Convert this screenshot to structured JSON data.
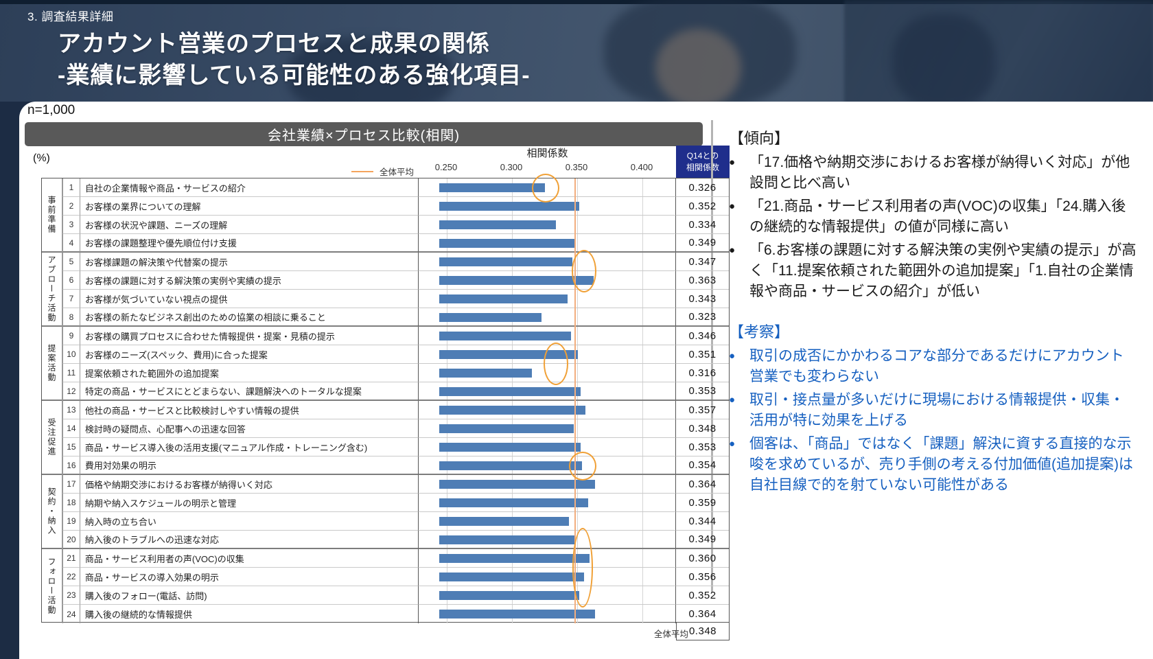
{
  "slide": {
    "eyebrow": "3. 調査結果詳細",
    "title_line1": "アカウント営業のプロセスと成果の関係",
    "title_line2": "-業績に影響している可能性のある強化項目-",
    "sample_size": "n=1,000",
    "percent_label": "(%)"
  },
  "chart_data": {
    "type": "bar",
    "title": "会社業績×プロセス比較(相関)",
    "axis_title": "相関係数",
    "x_ticks": [
      0.25,
      0.3,
      0.35,
      0.4
    ],
    "xlim": [
      0.245,
      0.4275
    ],
    "bar_color": "#4E7DB5",
    "legend": {
      "label": "全体平均",
      "color": "#F4A45C",
      "style": "vertical-line"
    },
    "value_column_header": {
      "line1": "Q14との",
      "line2": "相関係数"
    },
    "overall_average": {
      "label": "全体平均",
      "value": 0.348
    },
    "groups": [
      {
        "name": "事前準備",
        "rows": 4
      },
      {
        "name": "アプローチ活動",
        "rows": 4
      },
      {
        "name": "提案活動",
        "rows": 4
      },
      {
        "name": "受注促進",
        "rows": 4
      },
      {
        "name": "契約・納入",
        "rows": 4
      },
      {
        "name": "フォロー活動",
        "rows": 4
      }
    ],
    "rows": [
      {
        "no": 1,
        "group": "事前準備",
        "label": "自社の企業情報や商品・サービスの紹介",
        "value": 0.326
      },
      {
        "no": 2,
        "group": "事前準備",
        "label": "お客様の業界についての理解",
        "value": 0.352
      },
      {
        "no": 3,
        "group": "事前準備",
        "label": "お客様の状況や課題、ニーズの理解",
        "value": 0.334
      },
      {
        "no": 4,
        "group": "事前準備",
        "label": "お客様の課題整理や優先順位付け支援",
        "value": 0.349
      },
      {
        "no": 5,
        "group": "アプローチ活動",
        "label": "お客様課題の解決策や代替案の提示",
        "value": 0.347
      },
      {
        "no": 6,
        "group": "アプローチ活動",
        "label": "お客様の課題に対する解決策の実例や実績の提示",
        "value": 0.363
      },
      {
        "no": 7,
        "group": "アプローチ活動",
        "label": "お客様が気づいていない視点の提供",
        "value": 0.343
      },
      {
        "no": 8,
        "group": "アプローチ活動",
        "label": "お客様の新たなビジネス創出のための協業の相談に乗ること",
        "value": 0.323
      },
      {
        "no": 9,
        "group": "提案活動",
        "label": "お客様の購買プロセスに合わせた情報提供・提案・見積の提示",
        "value": 0.346
      },
      {
        "no": 10,
        "group": "提案活動",
        "label": "お客様のニーズ(スペック、費用)に合った提案",
        "value": 0.351
      },
      {
        "no": 11,
        "group": "提案活動",
        "label": "提案依頼された範囲外の追加提案",
        "value": 0.316
      },
      {
        "no": 12,
        "group": "提案活動",
        "label": "特定の商品・サービスにとどまらない、課題解決へのトータルな提案",
        "value": 0.353
      },
      {
        "no": 13,
        "group": "受注促進",
        "label": "他社の商品・サービスと比較検討しやすい情報の提供",
        "value": 0.357
      },
      {
        "no": 14,
        "group": "受注促進",
        "label": "検討時の疑問点、心配事への迅速な回答",
        "value": 0.348
      },
      {
        "no": 15,
        "group": "受注促進",
        "label": "商品・サービス導入後の活用支援(マニュアル作成・トレーニング含む)",
        "value": 0.353
      },
      {
        "no": 16,
        "group": "受注促進",
        "label": "費用対効果の明示",
        "value": 0.354
      },
      {
        "no": 17,
        "group": "契約・納入",
        "label": "価格や納期交渉におけるお客様が納得いく対応",
        "value": 0.364
      },
      {
        "no": 18,
        "group": "契約・納入",
        "label": "納期や納入スケジュールの明示と管理",
        "value": 0.359
      },
      {
        "no": 19,
        "group": "契約・納入",
        "label": "納入時の立ち合い",
        "value": 0.344
      },
      {
        "no": 20,
        "group": "契約・納入",
        "label": "納入後のトラブルへの迅速な対応",
        "value": 0.349
      },
      {
        "no": 21,
        "group": "フォロー活動",
        "label": "商品・サービス利用者の声(VOC)の収集",
        "value": 0.36
      },
      {
        "no": 22,
        "group": "フォロー活動",
        "label": "商品・サービスの導入効果の明示",
        "value": 0.356
      },
      {
        "no": 23,
        "group": "フォロー活動",
        "label": "購入後のフォロー(電話、訪問)",
        "value": 0.352
      },
      {
        "no": 24,
        "group": "フォロー活動",
        "label": "購入後の継続的な情報提供",
        "value": 0.364
      }
    ],
    "annotations": [
      {
        "rows": [
          1
        ]
      },
      {
        "rows": [
          5,
          6
        ]
      },
      {
        "rows": [
          10,
          11
        ]
      },
      {
        "rows": [
          16
        ]
      },
      {
        "rows": [
          20,
          21,
          22,
          23
        ]
      }
    ],
    "annotation_color": "#F0A036"
  },
  "panel": {
    "trend_heading": "【傾向】",
    "trend_bullets": [
      "「17.価格や納期交渉におけるお客様が納得いく対応」が他設問と比べ高い",
      "「21.商品・サービス利用者の声(VOC)の収集」「24.購入後の継続的な情報提供」の値が同様に高い",
      "「6.お客様の課題に対する解決策の実例や実績の提示」が高く「11.提案依頼された範囲外の追加提案」「1.自社の企業情報や商品・サービスの紹介」が低い"
    ],
    "insight_heading": "【考察】",
    "insight_bullets": [
      "取引の成否にかかわるコアな部分であるだけにアカウント営業でも変わらない",
      "取引・接点量が多いだけに現場における情報提供・収集・活用が特に効果を上げる",
      "個客は、「商品」ではなく「課題」解決に資する直接的な示唆を求めているが、売り手側の考える付加価値(追加提案)は自社目線で的を射ていない可能性がある"
    ],
    "insight_color": "#1660C0"
  }
}
